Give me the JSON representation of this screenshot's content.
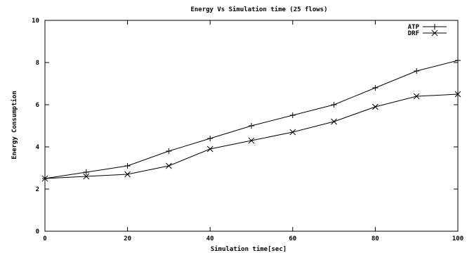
{
  "chart_data": {
    "type": "line",
    "title": "Energy Vs Simulation time (25 flows)",
    "xlabel": "Simulation time[sec]",
    "ylabel": "Energy Consumption",
    "xlim": [
      0,
      100
    ],
    "ylim": [
      0,
      10
    ],
    "xticks": [
      0,
      20,
      40,
      60,
      80,
      100
    ],
    "yticks": [
      0,
      2,
      4,
      6,
      8,
      10
    ],
    "grid": false,
    "legend_position": "top-right",
    "x": [
      0,
      10,
      20,
      30,
      40,
      50,
      60,
      70,
      80,
      90,
      100
    ],
    "series": [
      {
        "name": "ATP",
        "marker": "plus",
        "values": [
          2.5,
          2.8,
          3.1,
          3.8,
          4.4,
          5.0,
          5.5,
          6.0,
          6.8,
          7.6,
          8.1
        ]
      },
      {
        "name": "DRF",
        "marker": "cross",
        "values": [
          2.5,
          2.6,
          2.7,
          3.1,
          3.9,
          4.3,
          4.7,
          5.2,
          5.9,
          6.4,
          6.5
        ]
      }
    ]
  }
}
